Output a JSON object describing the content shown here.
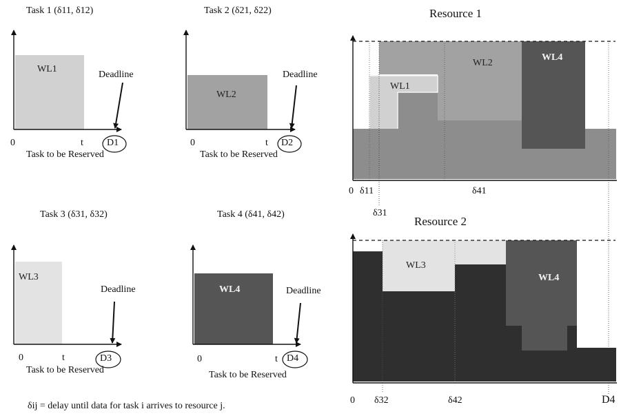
{
  "colors": {
    "wl1": "#d1d1d1",
    "wl2": "#a2a2a2",
    "wl3": "#e3e3e3",
    "wl4": "#555555",
    "resource1_base": "#8d8d8d",
    "resource2_base": "#2f2f2f",
    "axis": "#111111"
  },
  "tasks": [
    {
      "title": "Task 1 (δ11, δ12)",
      "wl": "WL1",
      "deadline_label": "Deadline",
      "origin": "0",
      "t": "t",
      "deadline": "D1",
      "caption": "Task to be Reserved"
    },
    {
      "title": "Task 2 (δ21, δ22)",
      "wl": "WL2",
      "deadline_label": "Deadline",
      "origin": "0",
      "t": "t",
      "deadline": "D2",
      "caption": "Task to be Reserved"
    },
    {
      "title": "Task 3 (δ31, δ32)",
      "wl": "WL3",
      "deadline_label": "Deadline",
      "origin": "0",
      "t": "t",
      "deadline": "D3",
      "caption": "Task to be Reserved"
    },
    {
      "title": "Task 4 (δ41, δ42)",
      "wl": "WL4",
      "deadline_label": "Deadline",
      "origin": "0",
      "t": "t",
      "deadline": "D4",
      "caption": "Task to be Reserved"
    }
  ],
  "resources": [
    {
      "title": "Resource 1",
      "wl_labels": [
        "WL1",
        "WL2",
        "WL4"
      ],
      "axis_labels": [
        "0",
        "δ11",
        "δ41",
        "δ31"
      ]
    },
    {
      "title": "Resource 2",
      "wl_labels": [
        "WL3",
        "WL4"
      ],
      "axis_labels": [
        "0",
        "δ32",
        "δ42",
        "D4"
      ]
    }
  ],
  "footnote": "δij = delay until data for task i arrives to resource j."
}
